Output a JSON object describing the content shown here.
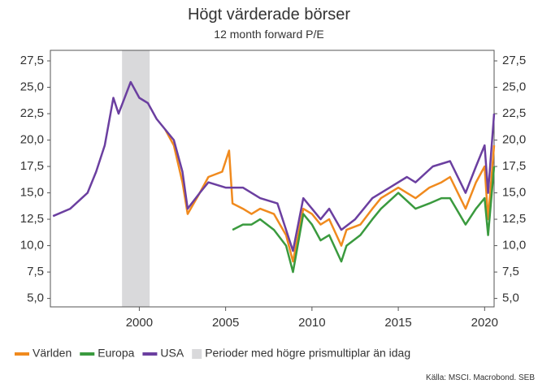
{
  "chart_data": {
    "type": "line",
    "title": "Högt värderade börser",
    "subtitle": "12 month forward P/E",
    "source": "Källa: MSCI, Macrobond, SEB",
    "xlim": [
      1994.85,
      2020.55
    ],
    "xticks": [
      2000,
      2005,
      2010,
      2015,
      2020
    ],
    "ylim": [
      4.2,
      28.5
    ],
    "yticks": [
      {
        "value": 5,
        "label": "5,0"
      },
      {
        "value": 7.5,
        "label": "7,5"
      },
      {
        "value": 10,
        "label": "10,0"
      },
      {
        "value": 12.5,
        "label": "12,5"
      },
      {
        "value": 15,
        "label": "15,0"
      },
      {
        "value": 17.5,
        "label": "17,5"
      },
      {
        "value": 20,
        "label": "20,0"
      },
      {
        "value": 22.5,
        "label": "22,5"
      },
      {
        "value": 25,
        "label": "25,0"
      },
      {
        "value": 27.5,
        "label": "27,5"
      }
    ],
    "shaded": {
      "name": "Perioder med högre prismultiplar än idag",
      "start": 1999.0,
      "end": 2000.6,
      "color": "#d9d9db"
    },
    "series": [
      {
        "name": "Världen",
        "color": "#f08a1e",
        "x": [
          2001.5,
          2002.0,
          2002.5,
          2002.8,
          2003.5,
          2004.0,
          2004.8,
          2005.2,
          2005.4,
          2006.0,
          2006.5,
          2007.0,
          2007.8,
          2008.5,
          2008.9,
          2009.5,
          2010.0,
          2010.5,
          2011.0,
          2011.7,
          2012.0,
          2012.8,
          2013.5,
          2014.0,
          2015.0,
          2016.0,
          2016.8,
          2017.5,
          2018.0,
          2018.9,
          2019.5,
          2020.0,
          2020.2,
          2020.55
        ],
        "values": [
          21,
          19.5,
          16,
          13,
          15,
          16.5,
          17,
          19,
          14,
          13.5,
          13,
          13.5,
          13,
          11,
          8.5,
          13.5,
          13,
          12,
          12.5,
          10,
          11.5,
          12,
          13.5,
          14.5,
          15.5,
          14.5,
          15.5,
          16,
          16.5,
          13.5,
          16,
          17.5,
          12.5,
          19.5
        ]
      },
      {
        "name": "Europa",
        "color": "#3a9a3e",
        "x": [
          2005.4,
          2006.0,
          2006.5,
          2007.0,
          2007.8,
          2008.5,
          2008.9,
          2009.5,
          2010.0,
          2010.5,
          2011.0,
          2011.7,
          2012.0,
          2012.8,
          2013.5,
          2014.0,
          2015.0,
          2016.0,
          2016.8,
          2017.5,
          2018.0,
          2018.9,
          2019.5,
          2020.0,
          2020.2,
          2020.55
        ],
        "values": [
          11.5,
          12,
          12,
          12.5,
          11.5,
          10,
          7.5,
          13,
          12,
          10.5,
          11,
          8.5,
          10,
          11,
          12.5,
          13.5,
          15,
          13.5,
          14,
          14.5,
          14.5,
          12,
          13.5,
          14.5,
          11,
          17.5
        ]
      },
      {
        "name": "USA",
        "color": "#6b3fa0",
        "x": [
          1995.0,
          1996.0,
          1997.0,
          1997.5,
          1998.0,
          1998.5,
          1998.8,
          1999.5,
          2000.0,
          2000.5,
          2001.0,
          2001.5,
          2002.0,
          2002.5,
          2002.8,
          2003.5,
          2004.0,
          2005.0,
          2006.0,
          2007.0,
          2008.0,
          2008.9,
          2009.5,
          2010.0,
          2010.5,
          2011.0,
          2011.7,
          2012.5,
          2013.5,
          2014.5,
          2015.5,
          2016.0,
          2017.0,
          2018.0,
          2018.9,
          2019.5,
          2020.0,
          2020.2,
          2020.55
        ],
        "values": [
          12.8,
          13.5,
          15,
          17,
          19.5,
          24,
          22.5,
          25.5,
          24,
          23.5,
          22,
          21,
          20,
          17,
          13.5,
          15,
          16,
          15.5,
          15.5,
          14.5,
          14,
          9.5,
          14.5,
          13.5,
          12.5,
          13.5,
          11.5,
          12.5,
          14.5,
          15.5,
          16.5,
          16,
          17.5,
          18,
          15,
          17.5,
          19.5,
          15,
          22.5
        ]
      }
    ]
  }
}
